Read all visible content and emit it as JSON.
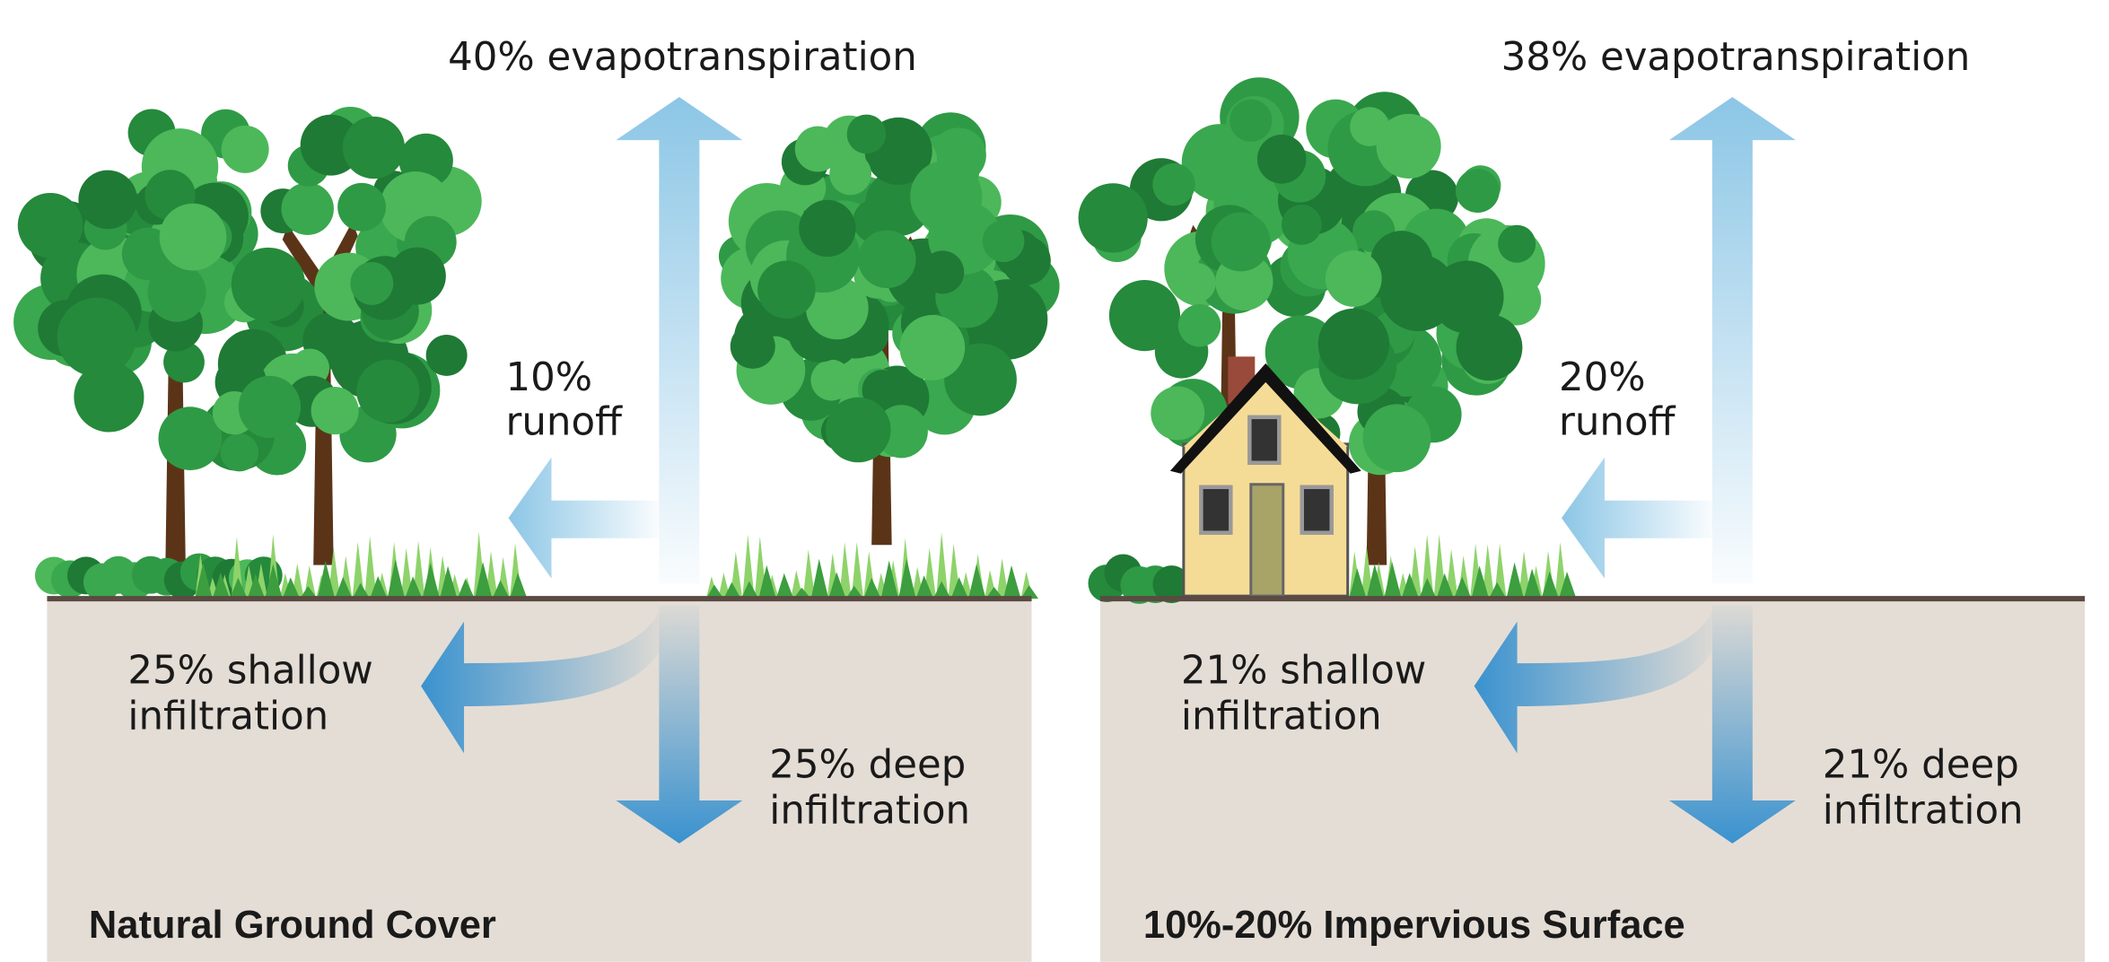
{
  "panels": [
    {
      "title": "Natural Ground Cover",
      "evapotranspiration": "40% evapotranspiration",
      "runoff": [
        "10%",
        "runoff"
      ],
      "shallow_infiltration": [
        "25% shallow",
        "infiltration"
      ],
      "deep_infiltration": [
        "25% deep",
        "infiltration"
      ]
    },
    {
      "title": "10%-20% Impervious Surface",
      "evapotranspiration": "38% evapotranspiration",
      "runoff": [
        "20%",
        "runoff"
      ],
      "shallow_infiltration": [
        "21% shallow",
        "infiltration"
      ],
      "deep_infiltration": [
        "21% deep",
        "infiltration"
      ]
    }
  ]
}
